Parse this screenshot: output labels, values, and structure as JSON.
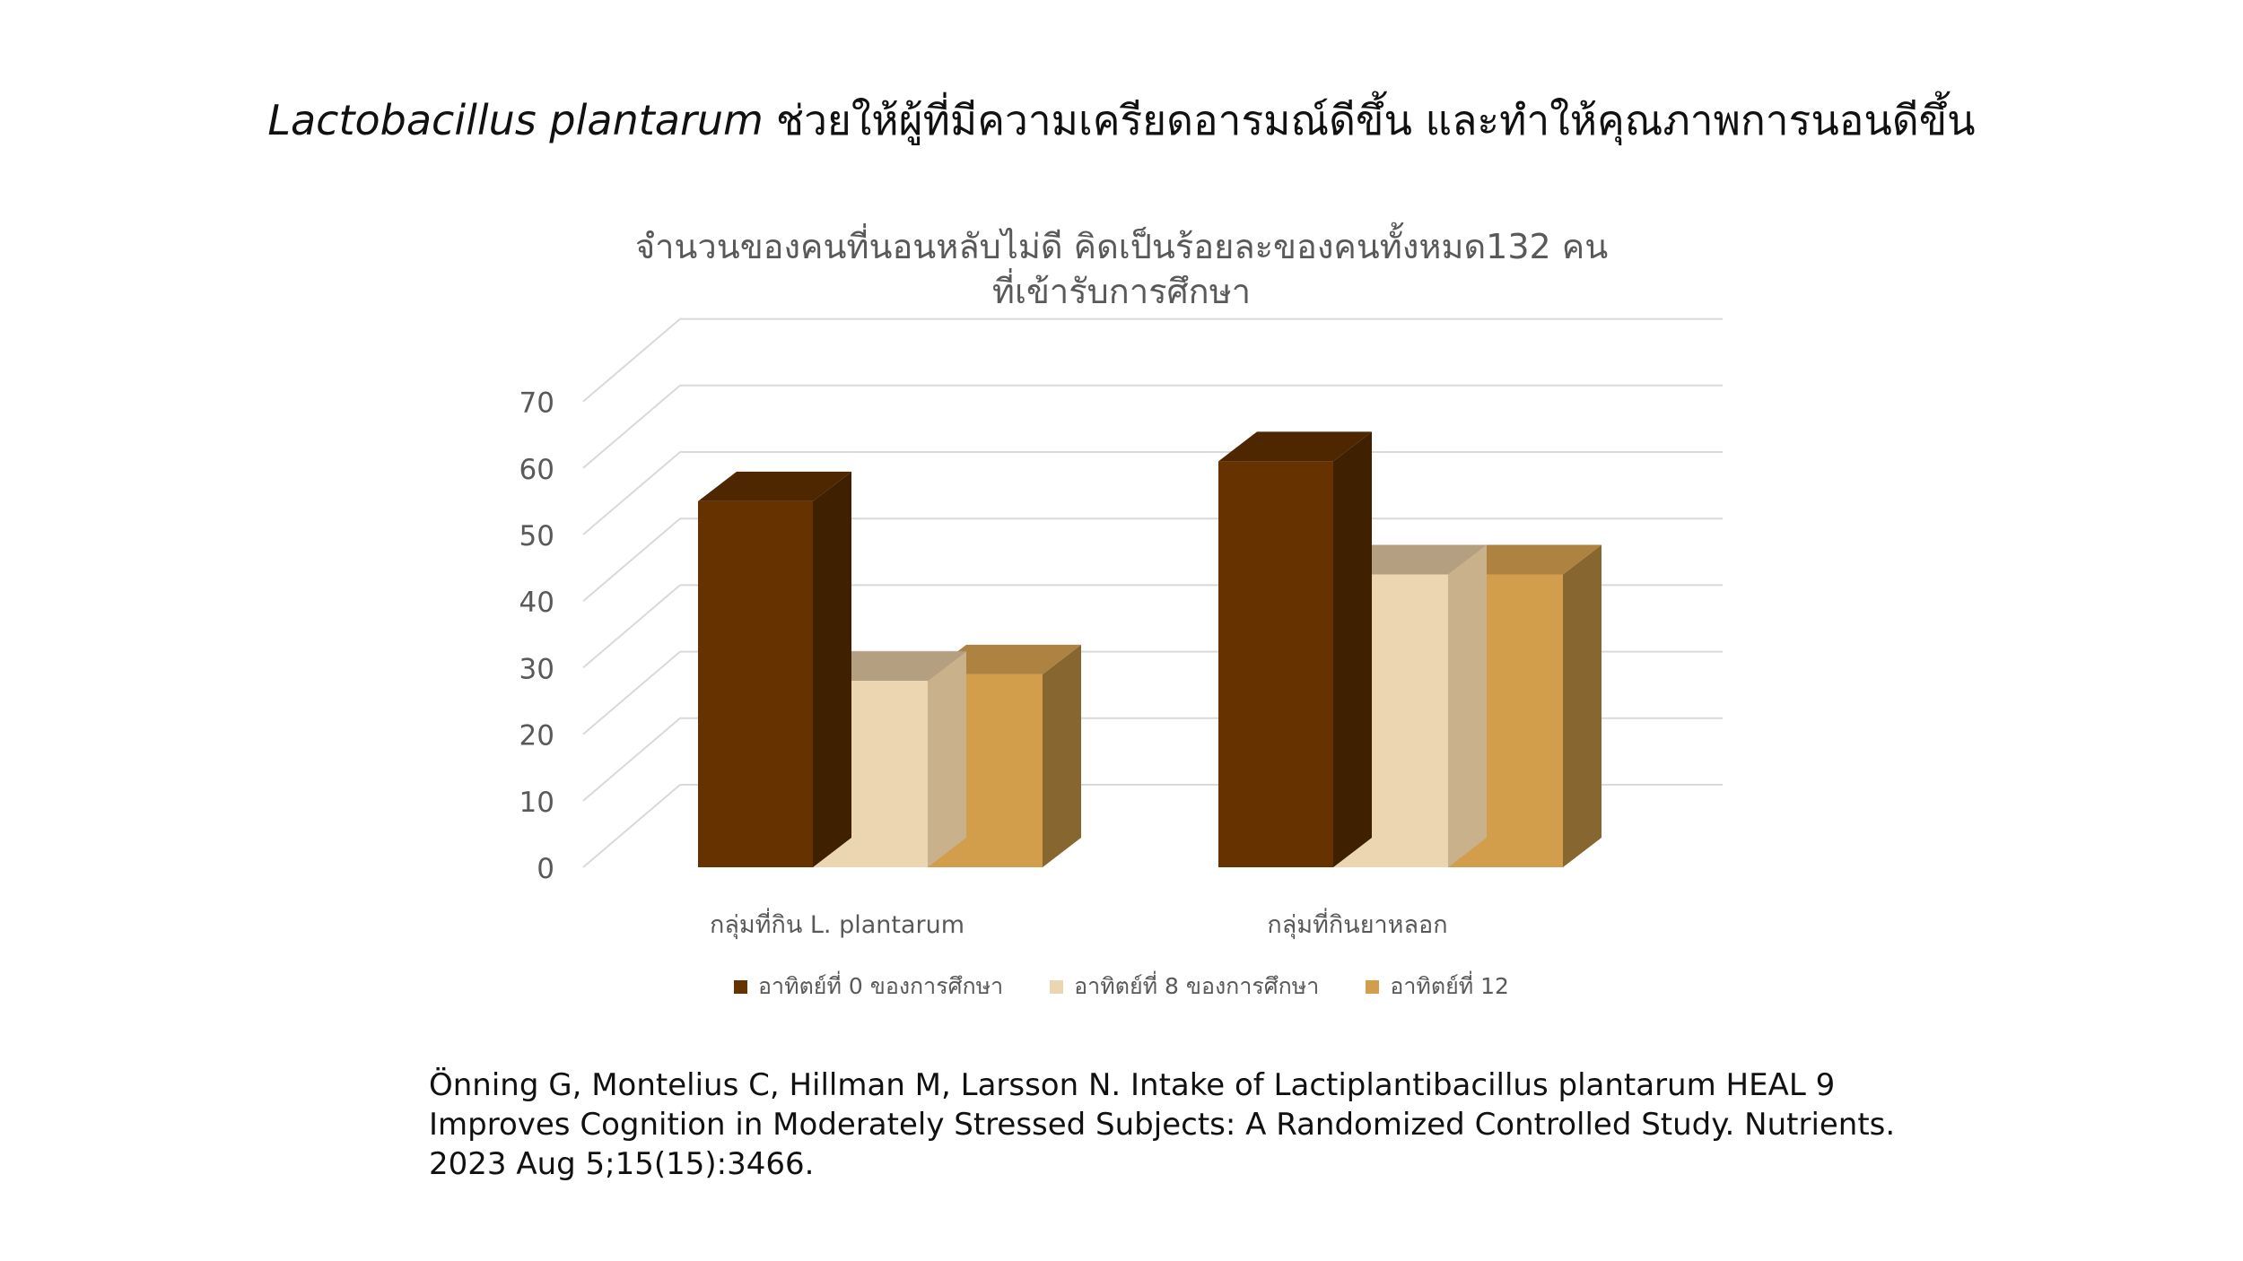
{
  "slide": {
    "title_latin": "Lactobacillus plantarum",
    "title_thai": "ช่วยให้ผู้ที่มีความเครียดอารมณ์ดีขึ้น และทำให้คุณภาพการนอนดีขึ้น",
    "citation": "Önning G, Montelius C, Hillman M, Larsson N. Intake of Lactiplantibacillus plantarum HEAL  9 Improves Cognition in Moderately Stressed Subjects: A Randomized Controlled Study. Nutrients.  2023 Aug 5;15(15):3466."
  },
  "chart_data": {
    "type": "bar",
    "style": "3d-clustered-column",
    "title_line1": "จำนวนของคนที่นอนหลับไม่ดี คิดเป็นร้อยละของคนทั้งหมด132 คน",
    "title_line2": "ที่เข้ารับการศึกษา",
    "categories": [
      "กลุ่มที่กิน L. plantarum",
      "กลุ่มที่กินยาหลอก"
    ],
    "ylim": [
      0,
      70
    ],
    "yticks": [
      0,
      10,
      20,
      30,
      40,
      50,
      60,
      70
    ],
    "grid": true,
    "legend_position": "bottom",
    "series": [
      {
        "name": "อาทิตย์ที่ 0 ของการศึกษา",
        "values": [
          55,
          61
        ],
        "color": "#663300",
        "side_color": "#3f2000",
        "top_color": "#4e2700"
      },
      {
        "name": "อาทิตย์ที่ 8 ของการศึกษา",
        "values": [
          28,
          44
        ],
        "color": "#ecd6b2",
        "side_color": "#c9b18c",
        "top_color": "#b4a081"
      },
      {
        "name": "อาทิตย์ที่ 12",
        "values": [
          29,
          44
        ],
        "color": "#d29e4c",
        "side_color": "#886630",
        "top_color": "#ae8240"
      }
    ]
  }
}
